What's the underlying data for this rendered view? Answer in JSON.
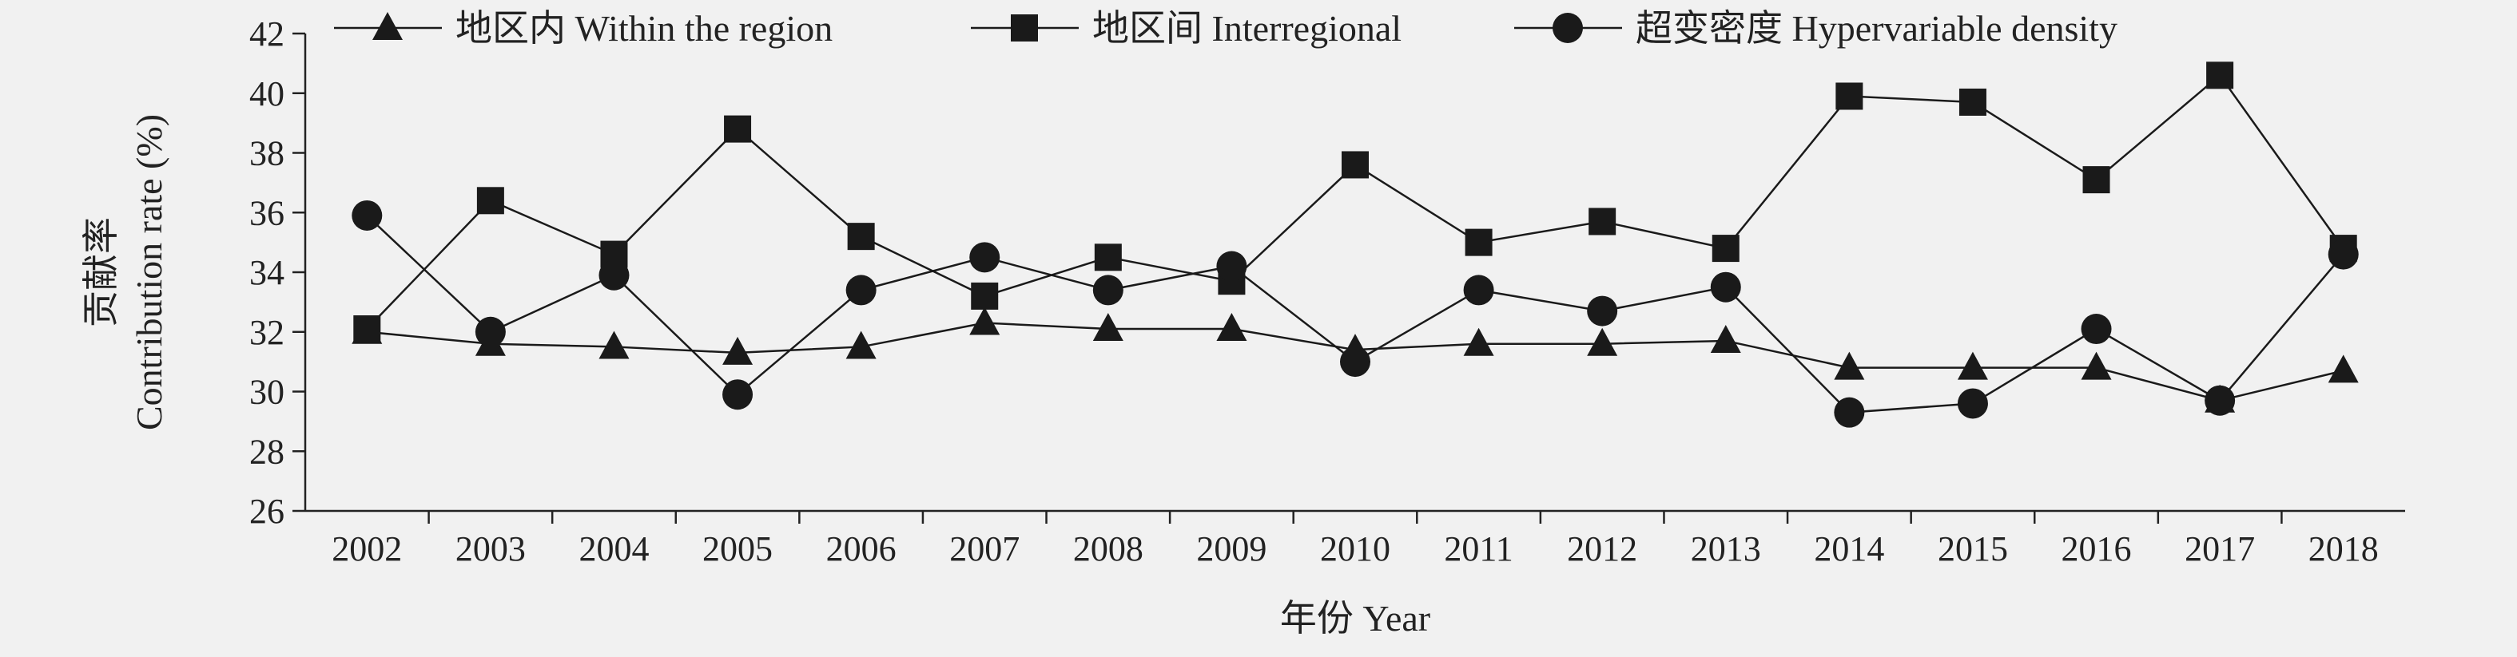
{
  "chart_data": {
    "type": "line",
    "xlabel": "年份 Year",
    "ylabel_cn": "贡献率",
    "ylabel_en": "Contribution rate (%)",
    "ylim": [
      26,
      42
    ],
    "yticks": [
      26,
      28,
      30,
      32,
      34,
      36,
      38,
      40,
      42
    ],
    "categories": [
      "2002",
      "2003",
      "2004",
      "2005",
      "2006",
      "2007",
      "2008",
      "2009",
      "2010",
      "2011",
      "2012",
      "2013",
      "2014",
      "2015",
      "2016",
      "2017",
      "2018"
    ],
    "legend_position": "top",
    "grid": false,
    "series": [
      {
        "name": "地区内 Within the region",
        "marker": "triangle",
        "values": [
          32.0,
          31.6,
          31.5,
          31.3,
          31.5,
          32.3,
          32.1,
          32.1,
          31.4,
          31.6,
          31.6,
          31.7,
          30.8,
          30.8,
          30.8,
          29.7,
          30.7
        ]
      },
      {
        "name": "地区间 Interregional",
        "marker": "square",
        "values": [
          32.1,
          36.4,
          34.6,
          38.8,
          35.2,
          33.2,
          34.5,
          33.7,
          37.6,
          35.0,
          35.7,
          34.8,
          39.9,
          39.7,
          37.1,
          40.6,
          34.8
        ]
      },
      {
        "name": "超变密度 Hypervariable density",
        "marker": "circle",
        "values": [
          35.9,
          32.0,
          33.9,
          29.9,
          33.4,
          34.5,
          33.4,
          34.2,
          31.0,
          33.4,
          32.7,
          33.5,
          29.3,
          29.6,
          32.1,
          29.7,
          34.6
        ]
      }
    ]
  }
}
